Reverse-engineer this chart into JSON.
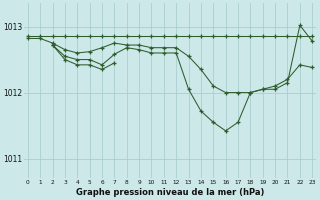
{
  "title": "Graphe pression niveau de la mer (hPa)",
  "bg_color": "#cce8e8",
  "grid_color": "#aacece",
  "line_color": "#2d5c2d",
  "ylim": [
    1010.7,
    1013.35
  ],
  "xlim": [
    -0.3,
    23.3
  ],
  "yticks": [
    1011,
    1012,
    1013
  ],
  "xticks": [
    0,
    1,
    2,
    3,
    4,
    5,
    6,
    7,
    8,
    9,
    10,
    11,
    12,
    13,
    14,
    15,
    16,
    17,
    18,
    19,
    20,
    21,
    22,
    23
  ],
  "series1": {
    "x": [
      0,
      1,
      2,
      3,
      4,
      5,
      6,
      7,
      8,
      9,
      10,
      11,
      12,
      13,
      14,
      15,
      16,
      17,
      18,
      19,
      20,
      21,
      22,
      23
    ],
    "y": [
      1012.85,
      1012.85,
      1012.85,
      1012.85,
      1012.85,
      1012.85,
      1012.85,
      1012.85,
      1012.85,
      1012.85,
      1012.85,
      1012.85,
      1012.85,
      1012.85,
      1012.85,
      1012.85,
      1012.85,
      1012.85,
      1012.85,
      1012.85,
      1012.85,
      1012.85,
      1012.85,
      1012.85
    ]
  },
  "series2": {
    "x": [
      0,
      1,
      2,
      3,
      4,
      5,
      6,
      7,
      8,
      9,
      10,
      11,
      12,
      13,
      14,
      15,
      16,
      17,
      18,
      19,
      20,
      21,
      22,
      23
    ],
    "y": [
      1012.82,
      1012.82,
      1012.75,
      1012.65,
      1012.6,
      1012.62,
      1012.68,
      1012.75,
      1012.72,
      1012.72,
      1012.68,
      1012.68,
      1012.68,
      1012.55,
      1012.35,
      1012.1,
      1012.0,
      1012.0,
      1012.0,
      1012.05,
      1012.05,
      1012.15,
      1013.02,
      1012.78
    ]
  },
  "series3": {
    "x": [
      2,
      3,
      4,
      5,
      6,
      7,
      8,
      9,
      10,
      11,
      12,
      13,
      14,
      15,
      16,
      17,
      18,
      19,
      20,
      21,
      22,
      23
    ],
    "y": [
      1012.72,
      1012.55,
      1012.5,
      1012.5,
      1012.42,
      1012.58,
      1012.68,
      1012.65,
      1012.6,
      1012.6,
      1012.6,
      1012.05,
      1011.72,
      1011.55,
      1011.42,
      1011.55,
      1012.0,
      1012.05,
      1012.1,
      1012.2,
      1012.42,
      1012.38
    ]
  },
  "series4": {
    "x": [
      2,
      3,
      4,
      5,
      6,
      7
    ],
    "y": [
      1012.72,
      1012.5,
      1012.42,
      1012.42,
      1012.35,
      1012.45
    ]
  }
}
